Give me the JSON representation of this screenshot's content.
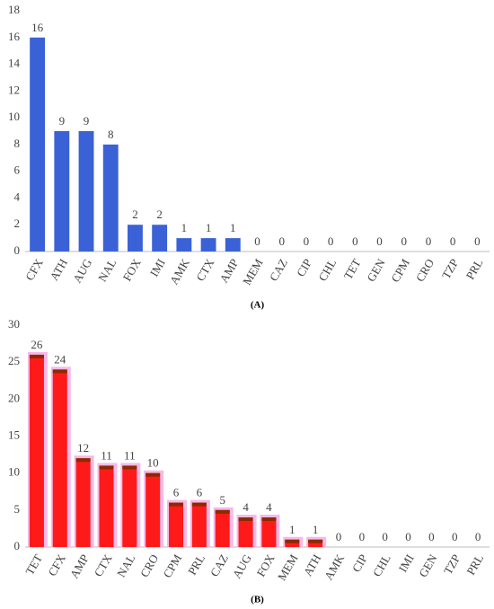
{
  "chart_data": [
    {
      "type": "bar",
      "caption": "(A)",
      "categories": [
        "CFX",
        "ATH",
        "AUG",
        "NAL",
        "FOX",
        "IMI",
        "AMK",
        "CTX",
        "AMP",
        "MEM",
        "CAZ",
        "CIP",
        "CHL",
        "TET",
        "GEN",
        "CPM",
        "CRO",
        "TZP",
        "PRL"
      ],
      "values": [
        16,
        9,
        9,
        8,
        2,
        2,
        1,
        1,
        1,
        0,
        0,
        0,
        0,
        0,
        0,
        0,
        0,
        0,
        0
      ],
      "color": "#3a62d6",
      "ylim": [
        0,
        18
      ],
      "yticks": [
        0,
        2,
        4,
        6,
        8,
        10,
        12,
        14,
        16,
        18
      ],
      "grid": false
    },
    {
      "type": "bar",
      "caption": "(B)",
      "categories": [
        "TET",
        "CFX",
        "AMP",
        "CTX",
        "NAL",
        "CRO",
        "CPM",
        "PRL",
        "CAZ",
        "AUG",
        "FOX",
        "MEM",
        "ATH",
        "AMK",
        "CIP",
        "CHL",
        "IMI",
        "GEN",
        "TZP",
        "PRL"
      ],
      "values": [
        26,
        24,
        12,
        11,
        11,
        10,
        6,
        6,
        5,
        4,
        4,
        1,
        1,
        0,
        0,
        0,
        0,
        0,
        0,
        0
      ],
      "color": "#ff1a1a",
      "ylim": [
        0,
        30
      ],
      "yticks": [
        0,
        5,
        10,
        15,
        20,
        25,
        30
      ],
      "grid": false
    }
  ]
}
